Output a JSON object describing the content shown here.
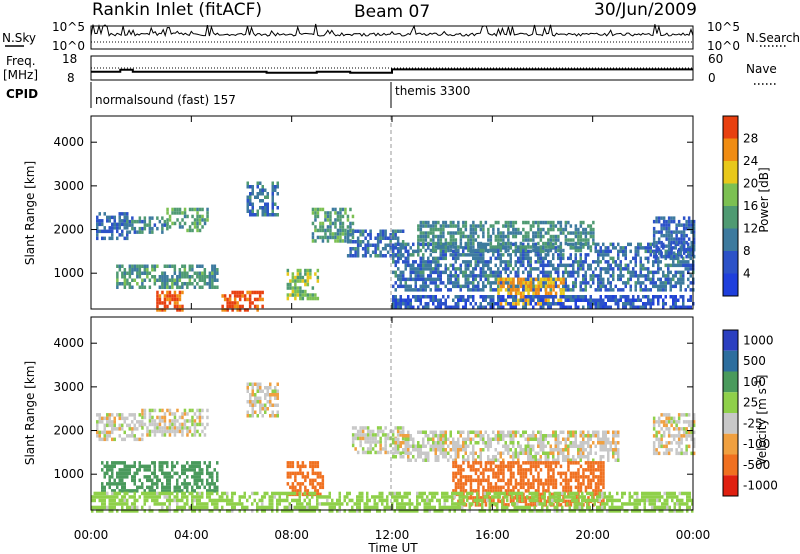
{
  "header": {
    "station": "Rankin Inlet (fitACF)",
    "beam": "Beam 07",
    "date": "30/Jun/2009"
  },
  "left_labels": {
    "nsky": "N.Sky",
    "freq": "Freq.",
    "freq_unit": "[MHz]",
    "cpid": "CPID"
  },
  "right_labels": {
    "nsearch": "N.Search",
    "nave": "Nave"
  },
  "chart_data": [
    {
      "type": "line",
      "panel": "noise",
      "y_ticks_left": [
        "10^5",
        "10^0"
      ],
      "y_ticks_right": [
        "10^5",
        "10^0"
      ],
      "log_scale": true,
      "series": [
        {
          "name": "N.Sky",
          "style": "solid"
        },
        {
          "name": "N.Search",
          "style": "dotted"
        }
      ]
    },
    {
      "type": "line",
      "panel": "frequency",
      "y_ticks_left": [
        "18",
        "8"
      ],
      "y_ticks_right": [
        "60",
        "0"
      ],
      "series": [
        {
          "name": "Freq.",
          "style": "solid",
          "x": [
            "00:00",
            "01:00",
            "01:10",
            "01:40",
            "06:40",
            "07:00",
            "08:40",
            "09:00",
            "10:00",
            "10:20",
            "11:40",
            "12:00",
            "24:00"
          ],
          "values": [
            10.8,
            10.8,
            12.0,
            10.8,
            10.8,
            10.2,
            10.2,
            10.8,
            10.8,
            10.2,
            10.2,
            12.2,
            12.2
          ]
        },
        {
          "name": "Nave",
          "style": "dotted",
          "value_approx": 30
        }
      ]
    },
    {
      "type": "table",
      "panel": "cpid",
      "segments": [
        {
          "label": "normalsound (fast) 157",
          "start": "00:00",
          "end": "12:00"
        },
        {
          "label": "themis 3300",
          "start": "12:00",
          "end": "24:00"
        }
      ]
    },
    {
      "type": "heatmap",
      "panel": "power",
      "ylabel": "Slant Range [km]",
      "y_ticks": [
        1000,
        2000,
        3000,
        4000
      ],
      "ylim": [
        180,
        4600
      ],
      "colorbar": {
        "label": "Power [dB]",
        "ticks": [
          4,
          8,
          12,
          16,
          20,
          24,
          28
        ],
        "range": [
          0,
          32
        ],
        "colors": [
          "#1f3fdc",
          "#2c52c8",
          "#3d7a9e",
          "#4f9a72",
          "#7cc052",
          "#e8c81a",
          "#f08c12",
          "#e84010"
        ]
      },
      "regions": [
        {
          "t": [
            0.2,
            1.4
          ],
          "r": [
            1800,
            2400
          ],
          "level": 8
        },
        {
          "t": [
            1.4,
            3.0
          ],
          "r": [
            1900,
            2300
          ],
          "level": 11
        },
        {
          "t": [
            3.0,
            4.6
          ],
          "r": [
            2000,
            2500
          ],
          "level": 15
        },
        {
          "t": [
            6.2,
            7.4
          ],
          "r": [
            2300,
            3100
          ],
          "level": 10
        },
        {
          "t": [
            8.8,
            10.4
          ],
          "r": [
            1700,
            2500
          ],
          "level": 14
        },
        {
          "t": [
            10.2,
            12.4
          ],
          "r": [
            1400,
            2000
          ],
          "level": 9
        },
        {
          "t": [
            12.0,
            24.0
          ],
          "r": [
            600,
            1700
          ],
          "level": 9
        },
        {
          "t": [
            13.0,
            20.0
          ],
          "r": [
            1500,
            2200
          ],
          "level": 12
        },
        {
          "t": [
            22.4,
            24.0
          ],
          "r": [
            1400,
            2300
          ],
          "level": 8
        },
        {
          "t": [
            1.0,
            5.0
          ],
          "r": [
            700,
            1200
          ],
          "level": 13
        },
        {
          "t": [
            2.6,
            3.6
          ],
          "r": [
            180,
            600
          ],
          "level": 30
        },
        {
          "t": [
            5.2,
            6.8
          ],
          "r": [
            180,
            600
          ],
          "level": 30
        },
        {
          "t": [
            7.8,
            9.0
          ],
          "r": [
            400,
            1100
          ],
          "level": 18
        },
        {
          "t": [
            16.2,
            18.8
          ],
          "r": [
            300,
            900
          ],
          "level": 24
        },
        {
          "t": [
            12.0,
            24.0
          ],
          "r": [
            180,
            500
          ],
          "level": 6
        }
      ]
    },
    {
      "type": "heatmap",
      "panel": "velocity",
      "ylabel": "Slant Range [km]",
      "y_ticks": [
        1000,
        2000,
        3000,
        4000
      ],
      "ylim": [
        180,
        4600
      ],
      "colorbar": {
        "label": "Velocity [m s^-1]",
        "ticks": [
          1000,
          500,
          100,
          25,
          -25,
          -100,
          -500,
          -1000
        ],
        "colors": [
          "#2b3fc0",
          "#2d6e9e",
          "#4a9a5c",
          "#8fd04a",
          "#c8c8c8",
          "#f0a040",
          "#f07020",
          "#e02010"
        ]
      },
      "regions": [
        {
          "t": [
            0.2,
            2.0
          ],
          "r": [
            1800,
            2400
          ],
          "level": 0
        },
        {
          "t": [
            2.0,
            4.6
          ],
          "r": [
            1900,
            2500
          ],
          "level": 0
        },
        {
          "t": [
            6.2,
            7.4
          ],
          "r": [
            2300,
            3100
          ],
          "level": 0
        },
        {
          "t": [
            10.4,
            12.4
          ],
          "r": [
            1500,
            2100
          ],
          "level": 0
        },
        {
          "t": [
            12.0,
            21.0
          ],
          "r": [
            1300,
            2000
          ],
          "level": 0
        },
        {
          "t": [
            22.4,
            24.0
          ],
          "r": [
            1500,
            2400
          ],
          "level": 0
        },
        {
          "t": [
            0.4,
            5.0
          ],
          "r": [
            600,
            1300
          ],
          "level": 300
        },
        {
          "t": [
            7.8,
            9.2
          ],
          "r": [
            500,
            1300
          ],
          "level": -300
        },
        {
          "t": [
            14.4,
            20.4
          ],
          "r": [
            300,
            1300
          ],
          "level": -300
        },
        {
          "t": [
            0.0,
            24.0
          ],
          "r": [
            180,
            600
          ],
          "level": 60
        }
      ]
    }
  ],
  "x_axis": {
    "ticks": [
      "00:00",
      "04:00",
      "08:00",
      "12:00",
      "16:00",
      "20:00",
      "00:00"
    ],
    "label": "Time UT"
  }
}
